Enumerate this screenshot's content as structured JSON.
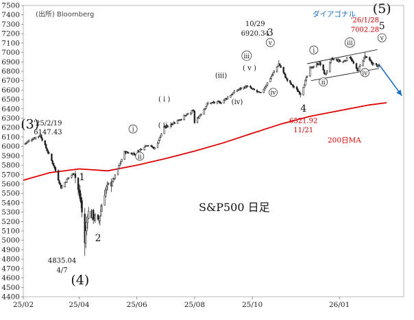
{
  "chart_data": {
    "type": "candlestick",
    "source_label": "(出所) Bloomberg",
    "chart_title": "S&P500 日足",
    "ylim": [
      4400,
      7500
    ],
    "y_ticks": [
      4400,
      4500,
      4600,
      4700,
      4800,
      4900,
      5000,
      5100,
      5200,
      5300,
      5400,
      5500,
      5600,
      5700,
      5800,
      5900,
      6000,
      6100,
      6200,
      6300,
      6400,
      6500,
      6600,
      6700,
      6800,
      6900,
      7000,
      7100,
      7200,
      7300,
      7400,
      7500
    ],
    "x_ticks": [
      {
        "label": "25/02",
        "date": "2025-02-01"
      },
      {
        "label": "25/04",
        "date": "2025-04-01"
      },
      {
        "label": "25/06",
        "date": "2025-06-01"
      },
      {
        "label": "25/08",
        "date": "2025-08-01"
      },
      {
        "label": "25/10",
        "date": "2025-10-01"
      },
      {
        "label": "26/01",
        "date": "2026-01-01"
      }
    ],
    "x_range": [
      "2025-02-01",
      "2026-03-10"
    ],
    "candle_color": "#222222",
    "price_path": [
      [
        "2025-02-01",
        6020
      ],
      [
        "2025-02-10",
        6080
      ],
      [
        "2025-02-19",
        6120
      ],
      [
        "2025-02-26",
        5960
      ],
      [
        "2025-03-05",
        5800
      ],
      [
        "2025-03-13",
        5560
      ],
      [
        "2025-03-20",
        5660
      ],
      [
        "2025-03-27",
        5720
      ],
      [
        "2025-04-03",
        5400
      ],
      [
        "2025-04-07",
        4980
      ],
      [
        "2025-04-10",
        5300
      ],
      [
        "2025-04-17",
        5250
      ],
      [
        "2025-04-21",
        5180
      ],
      [
        "2025-04-28",
        5520
      ],
      [
        "2025-05-08",
        5660
      ],
      [
        "2025-05-19",
        5940
      ],
      [
        "2025-05-30",
        5920
      ],
      [
        "2025-06-11",
        6020
      ],
      [
        "2025-06-20",
        5980
      ],
      [
        "2025-06-30",
        6200
      ],
      [
        "2025-07-15",
        6280
      ],
      [
        "2025-07-31",
        6380
      ],
      [
        "2025-08-01",
        6250
      ],
      [
        "2025-08-15",
        6460
      ],
      [
        "2025-08-29",
        6470
      ],
      [
        "2025-09-15",
        6600
      ],
      [
        "2025-09-25",
        6640
      ],
      [
        "2025-10-10",
        6560
      ],
      [
        "2025-10-29",
        6880
      ],
      [
        "2025-11-07",
        6700
      ],
      [
        "2025-11-21",
        6560
      ],
      [
        "2025-12-01",
        6830
      ],
      [
        "2025-12-11",
        6890
      ],
      [
        "2025-12-17",
        6760
      ],
      [
        "2025-12-24",
        6930
      ],
      [
        "2026-01-05",
        6900
      ],
      [
        "2026-01-12",
        6960
      ],
      [
        "2026-01-20",
        6800
      ],
      [
        "2026-01-28",
        6960
      ],
      [
        "2026-02-05",
        6880
      ],
      [
        "2026-02-12",
        6850
      ]
    ],
    "candle_extremes": [
      {
        "date": "2025-02-19",
        "high": 6147.43
      },
      {
        "date": "2025-04-07",
        "low": 4835.04
      },
      {
        "date": "2025-10-29",
        "high": 6920.34
      },
      {
        "date": "2025-11-21",
        "low": 6521.92
      },
      {
        "date": "2026-01-28",
        "high": 7002.28
      }
    ],
    "ma_series": {
      "name": "200日MA",
      "color": "#e00000",
      "points": [
        [
          "2025-02-01",
          5640
        ],
        [
          "2025-03-01",
          5720
        ],
        [
          "2025-04-01",
          5760
        ],
        [
          "2025-05-01",
          5740
        ],
        [
          "2025-06-01",
          5800
        ],
        [
          "2025-07-01",
          5870
        ],
        [
          "2025-08-01",
          5950
        ],
        [
          "2025-09-01",
          6040
        ],
        [
          "2025-10-01",
          6140
        ],
        [
          "2025-11-01",
          6240
        ],
        [
          "2025-12-01",
          6320
        ],
        [
          "2026-01-01",
          6380
        ],
        [
          "2026-02-01",
          6440
        ],
        [
          "2026-02-20",
          6465
        ]
      ]
    },
    "trendlines": [
      {
        "from": [
          "2025-11-28",
          6880
        ],
        "to": [
          "2026-02-10",
          7030
        ]
      },
      {
        "from": [
          "2025-12-02",
          6700
        ],
        "to": [
          "2026-02-12",
          6830
        ]
      }
    ],
    "forecast_arrow": {
      "from": [
        "2026-02-12",
        6870
      ],
      "to": [
        "2026-03-08",
        6540
      ],
      "color": "#1a6fc4"
    },
    "diagonal_label": "ダイアゴナル",
    "ma_label": "200日MA",
    "annotations": [
      {
        "text": "(3)",
        "date": "2025-02-08",
        "price": 6190,
        "style": "big"
      },
      {
        "text": "'25/2/19",
        "date": "2025-02-27",
        "price": 6225,
        "style": "small"
      },
      {
        "text": "6147.43",
        "date": "2025-02-27",
        "price": 6130,
        "style": "small"
      },
      {
        "text": "1",
        "date": "2025-04-04",
        "price": 5640,
        "style": "mid"
      },
      {
        "text": "2",
        "date": "2025-04-21",
        "price": 4990,
        "style": "mid"
      },
      {
        "text": "4835.04",
        "date": "2025-03-14",
        "price": 4760,
        "style": "small"
      },
      {
        "text": "4/7",
        "date": "2025-03-14",
        "price": 4660,
        "style": "small"
      },
      {
        "text": "(4)",
        "date": "2025-04-02",
        "price": 4530,
        "style": "big"
      },
      {
        "text": "i",
        "date": "2025-05-28",
        "price": 6160,
        "style": "circle"
      },
      {
        "text": "ii",
        "date": "2025-06-04",
        "price": 5870,
        "style": "circle"
      },
      {
        "text": "( i )",
        "date": "2025-06-30",
        "price": 6480,
        "style": "small"
      },
      {
        "text": "( ii )",
        "date": "2025-07-01",
        "price": 6200,
        "style": "small"
      },
      {
        "text": "(iii)",
        "date": "2025-08-29",
        "price": 6730,
        "style": "small"
      },
      {
        "text": "(iv)",
        "date": "2025-09-15",
        "price": 6450,
        "style": "small"
      },
      {
        "text": "( v )",
        "date": "2025-09-28",
        "price": 6810,
        "style": "small"
      },
      {
        "text": "iii",
        "date": "2025-09-25",
        "price": 6940,
        "style": "circle"
      },
      {
        "text": "iv",
        "date": "2025-10-23",
        "price": 6550,
        "style": "circle"
      },
      {
        "text": "v",
        "date": "2025-10-20",
        "price": 7080,
        "style": "circle"
      },
      {
        "text": "3",
        "date": "2025-10-20",
        "price": 7180,
        "style": "mid"
      },
      {
        "text": "10/29",
        "date": "2025-10-04",
        "price": 7280,
        "style": "small"
      },
      {
        "text": "6920.34",
        "date": "2025-10-04",
        "price": 7180,
        "style": "small"
      },
      {
        "text": "4",
        "date": "2025-11-24",
        "price": 6370,
        "style": "mid"
      },
      {
        "text": "6521.92",
        "date": "2025-11-24",
        "price": 6250,
        "style": "small-red"
      },
      {
        "text": "11/21",
        "date": "2025-11-24",
        "price": 6150,
        "style": "small-red"
      },
      {
        "text": "i",
        "date": "2025-12-05",
        "price": 7000,
        "style": "circle"
      },
      {
        "text": "ii",
        "date": "2025-12-15",
        "price": 6660,
        "style": "circle"
      },
      {
        "text": "iii",
        "date": "2026-01-12",
        "price": 7080,
        "style": "circle"
      },
      {
        "text": "iv",
        "date": "2026-01-28",
        "price": 6760,
        "style": "circle"
      },
      {
        "text": "v",
        "date": "2026-02-15",
        "price": 7130,
        "style": "circle"
      },
      {
        "text": "5",
        "date": "2026-02-15",
        "price": 7250,
        "style": "mid"
      },
      {
        "text": "(5)",
        "date": "2026-02-15",
        "price": 7420,
        "style": "big"
      },
      {
        "text": "'26/1/28",
        "date": "2026-01-28",
        "price": 7320,
        "style": "small-red"
      },
      {
        "text": "7002.28",
        "date": "2026-01-28",
        "price": 7220,
        "style": "small-red"
      }
    ]
  }
}
